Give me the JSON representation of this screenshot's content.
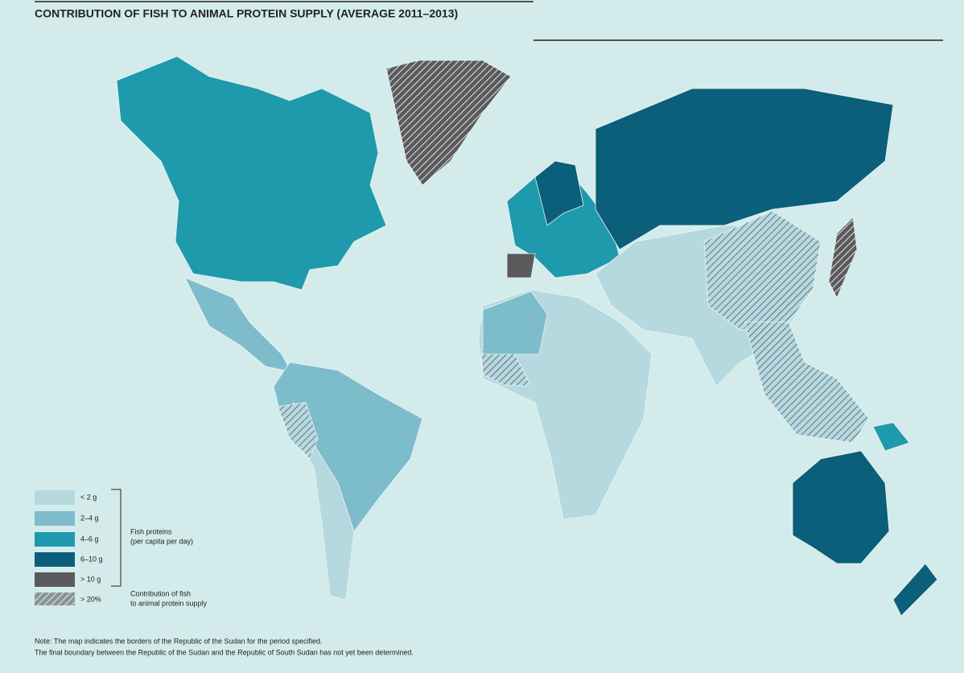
{
  "header": {
    "title": "CONTRIBUTION OF FISH TO ANIMAL PROTEIN SUPPLY (AVERAGE 2011–2013)"
  },
  "legend": {
    "items": [
      "< 2 g",
      "2–4 g",
      "4–6 g",
      "6–10 g",
      "> 10 g",
      "> 20%"
    ],
    "groups": [
      [
        "Fish proteins",
        "(per capita per day)"
      ],
      [
        "Contribution of fish",
        "to animal protein supply"
      ]
    ]
  },
  "note": [
    "Note: The map indicates the borders of the Republic of the Sudan for the period specified.",
    "The final boundary between the Republic of the Sudan and the Republic of South Sudan has not yet been determined."
  ]
}
